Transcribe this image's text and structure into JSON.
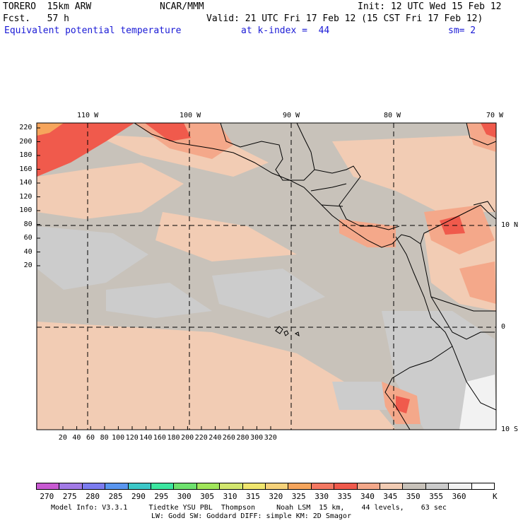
{
  "header": {
    "model": "TORERO  15km ARW",
    "center": "NCAR/MMM",
    "init": "Init: 12 UTC Wed 15 Feb 12",
    "fcst": "Fcst.   57 h",
    "valid": "Valid: 21 UTC Fri 17 Feb 12 (15 CST Fri 17 Feb 12)",
    "field": "Equivalent potential temperature",
    "kindex": "at k-index =  44",
    "smooth": "sm= 2"
  },
  "map": {
    "lon_labels": [
      "110 W",
      "100 W",
      "90 W",
      "80 W",
      "70 W"
    ],
    "lat_labels": [
      "10 N",
      "0",
      "10 S"
    ],
    "y_ticks": [
      "220",
      "200",
      "180",
      "160",
      "140",
      "120",
      "100",
      "80",
      "60",
      "40",
      "20"
    ],
    "x_ticks": [
      "20",
      "40",
      "60",
      "80",
      "100",
      "120",
      "140",
      "160",
      "180",
      "200",
      "220",
      "240",
      "260",
      "280",
      "300",
      "320"
    ],
    "colors": {
      "base": "#c8c2ba",
      "grey": "#cccccc",
      "peach": "#f2ccb4",
      "salmon": "#f4a88a",
      "red": "#f05a4c",
      "orange": "#f6a55c",
      "white": "#f2f2f2"
    }
  },
  "colorbar": {
    "labels": [
      "270",
      "275",
      "280",
      "285",
      "290",
      "295",
      "300",
      "305",
      "310",
      "315",
      "320",
      "325",
      "330",
      "335",
      "340",
      "345",
      "350",
      "355",
      "360"
    ],
    "unit": "K",
    "colors": [
      "#c85ad2",
      "#a27ae6",
      "#7c7cf0",
      "#5a96f0",
      "#3cc8c8",
      "#3ce6a0",
      "#6ee26e",
      "#a0e65a",
      "#d2e66e",
      "#f0e66e",
      "#f6d27a",
      "#f6a55c",
      "#f47862",
      "#f05a4c",
      "#f4a88a",
      "#f2ccb4",
      "#c8c2ba",
      "#cccccc",
      "#f2f2f2",
      "#ffffff"
    ]
  },
  "footer": {
    "line1": "Model Info: V3.3.1     Tiedtke YSU PBL  Thompson     Noah LSM  15 km,    44 levels,    63 sec",
    "line2": "LW: Godd SW: Goddard DIFF: simple KM: 2D Smagor"
  }
}
